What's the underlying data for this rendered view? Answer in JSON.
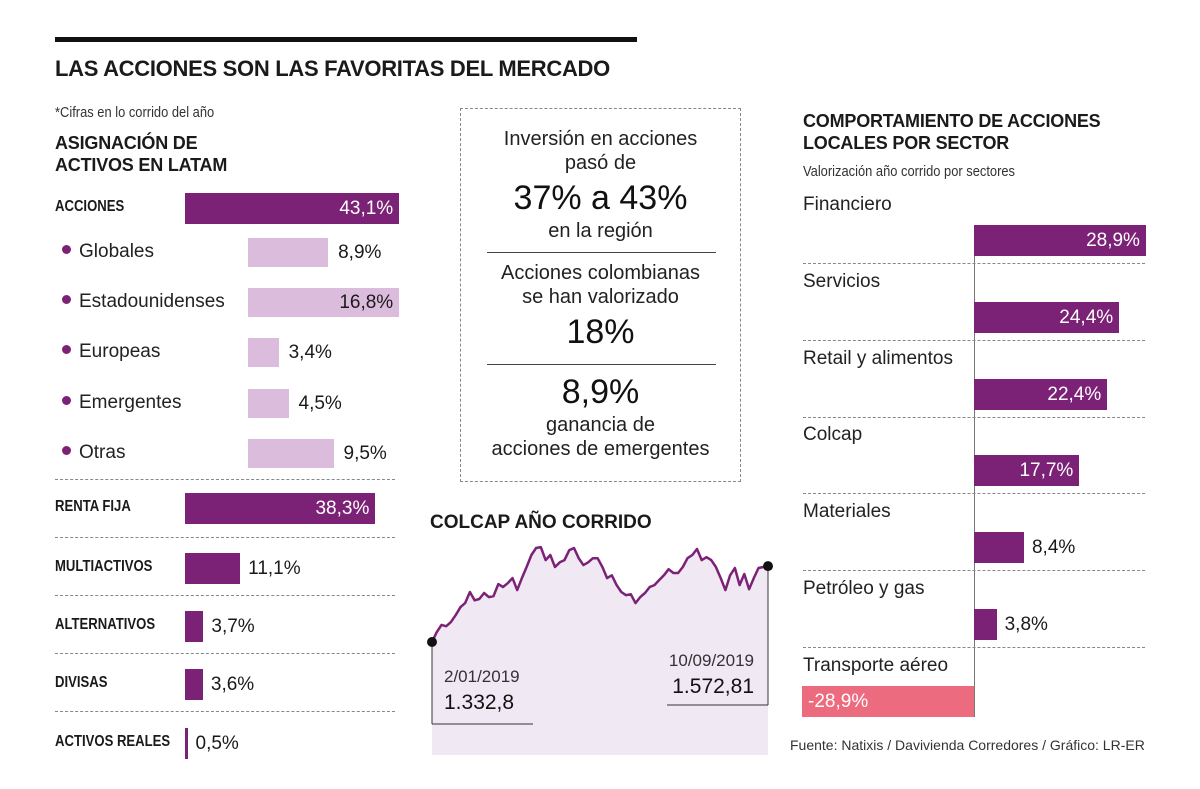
{
  "header": {
    "title": "LAS ACCIONES SON LAS FAVORITAS DEL MERCADO",
    "note": "*Cifras en lo corrido del año"
  },
  "colors": {
    "dark_purple": "#7c2276",
    "light_purple": "#dcbcdc",
    "negative": "#ec6b7e",
    "area_fill": "#f0e8f3"
  },
  "allocation": {
    "title_line1": "ASIGNACIÓN DE",
    "title_line2": "ACTIVOS EN LATAM"
  },
  "summary_box": {
    "block1_line1": "Inversión en acciones",
    "block1_line2": "pasó de",
    "block1_big": "37% a 43%",
    "block1_line3": "en la región",
    "block2_line1": "Acciones colombianas",
    "block2_line2": "se han valorizado",
    "block2_big": "18%",
    "block3_big": "8,9%",
    "block3_line1": "ganancia de",
    "block3_line2": "acciones de emergentes"
  },
  "colcap": {
    "title": "COLCAP AÑO CORRIDO",
    "start_date": "2/01/2019",
    "start_value": "1.332,8",
    "end_date": "10/09/2019",
    "end_value": "1.572,81"
  },
  "sectors": {
    "title_line1": "COMPORTAMIENTO DE ACCIONES",
    "title_line2": "LOCALES POR SECTOR",
    "subtitle": "Valorización año corrido por sectores"
  },
  "source": "Fuente: Natixis / Davivienda Corredores / Gráfico: LR-ER",
  "chart_data": [
    {
      "type": "bar",
      "orientation": "horizontal",
      "title": "ASIGNACIÓN DE ACTIVOS EN LATAM",
      "unit": "%",
      "categories": [
        "ACCIONES",
        "RENTA FIJA",
        "MULTIACTIVOS",
        "ALTERNATIVOS",
        "DIVISAS",
        "ACTIVOS REALES"
      ],
      "values": [
        43.1,
        38.3,
        11.1,
        3.7,
        3.6,
        0.5
      ],
      "labels": [
        "43,1%",
        "38,3%",
        "11,1%",
        "3,7%",
        "3,6%",
        "0,5%"
      ],
      "sub_breakdown": {
        "parent": "ACCIONES",
        "categories": [
          "Globales",
          "Estadounidenses",
          "Europeas",
          "Emergentes",
          "Otras"
        ],
        "values": [
          8.9,
          16.8,
          3.4,
          4.5,
          9.5
        ],
        "labels": [
          "8,9%",
          "16,8%",
          "3,4%",
          "4,5%",
          "9,5%"
        ]
      }
    },
    {
      "type": "line",
      "title": "COLCAP AÑO CORRIDO",
      "x_start": "2/01/2019",
      "x_end": "10/09/2019",
      "ylim": [
        976,
        1687
      ],
      "values": [
        1333,
        1364,
        1387,
        1383,
        1396,
        1418,
        1443,
        1456,
        1491,
        1465,
        1469,
        1488,
        1475,
        1478,
        1516,
        1507,
        1519,
        1535,
        1497,
        1535,
        1570,
        1608,
        1630,
        1633,
        1592,
        1608,
        1570,
        1585,
        1592,
        1623,
        1630,
        1598,
        1576,
        1585,
        1598,
        1598,
        1570,
        1535,
        1544,
        1513,
        1491,
        1481,
        1484,
        1456,
        1475,
        1488,
        1507,
        1513,
        1529,
        1544,
        1563,
        1551,
        1551,
        1570,
        1598,
        1608,
        1627,
        1592,
        1601,
        1592,
        1570,
        1535,
        1497,
        1544,
        1567,
        1513,
        1548,
        1500,
        1535,
        1567,
        1570,
        1572.81
      ],
      "annotations": [
        {
          "label": "2/01/2019",
          "value": "1.332,8",
          "position": "start"
        },
        {
          "label": "10/09/2019",
          "value": "1.572,81",
          "position": "end"
        }
      ]
    },
    {
      "type": "bar",
      "orientation": "horizontal",
      "title": "COMPORTAMIENTO DE ACCIONES LOCALES POR SECTOR",
      "subtitle": "Valorización año corrido por sectores",
      "unit": "%",
      "categories": [
        "Financiero",
        "Servicios",
        "Retail y alimentos",
        "Colcap",
        "Materiales",
        "Petróleo y gas",
        "Transporte aéreo"
      ],
      "values": [
        28.9,
        24.4,
        22.4,
        17.7,
        8.4,
        3.8,
        -28.9
      ],
      "labels": [
        "28,9%",
        "24,4%",
        "22,4%",
        "17,7%",
        "8,4%",
        "3,8%",
        "-28,9%"
      ]
    }
  ]
}
